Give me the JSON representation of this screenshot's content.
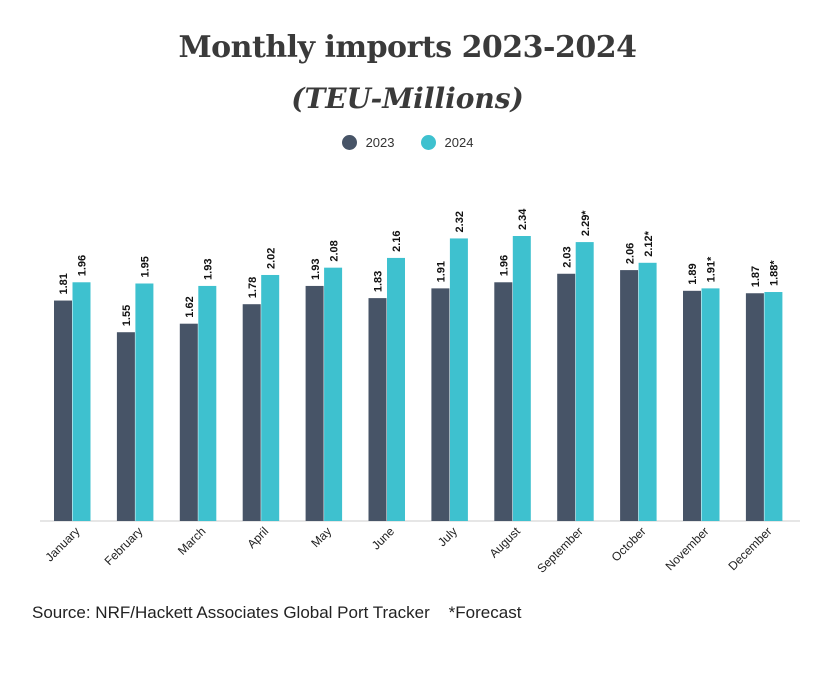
{
  "chart_data": {
    "type": "bar",
    "title": "Monthly imports 2023-2024",
    "subtitle": "(TEU-Millions)",
    "categories": [
      "January",
      "February",
      "March",
      "April",
      "May",
      "June",
      "July",
      "August",
      "September",
      "October",
      "November",
      "December"
    ],
    "series": [
      {
        "name": "2023",
        "color": "#475467",
        "values": [
          1.81,
          1.55,
          1.62,
          1.78,
          1.93,
          1.83,
          1.91,
          1.96,
          2.03,
          2.06,
          1.89,
          1.87
        ],
        "labels": [
          "1.81",
          "1.55",
          "1.62",
          "1.78",
          "1.93",
          "1.83",
          "1.91",
          "1.96",
          "2.03",
          "2.06",
          "1.89",
          "1.87"
        ]
      },
      {
        "name": "2024",
        "color": "#3ec1cf",
        "values": [
          1.96,
          1.95,
          1.93,
          2.02,
          2.08,
          2.16,
          2.32,
          2.34,
          2.29,
          2.12,
          1.91,
          1.88
        ],
        "labels": [
          "1.96",
          "1.95",
          "1.93",
          "2.02",
          "2.08",
          "2.16",
          "2.32",
          "2.34",
          "2.29*",
          "2.12*",
          "1.91*",
          "1.88*"
        ]
      }
    ],
    "ylim": [
      0,
      2.34
    ],
    "legend": "top-center",
    "grid": false
  },
  "footer": {
    "source": "Source: NRF/Hackett Associates Global Port Tracker",
    "note": "*Forecast"
  }
}
